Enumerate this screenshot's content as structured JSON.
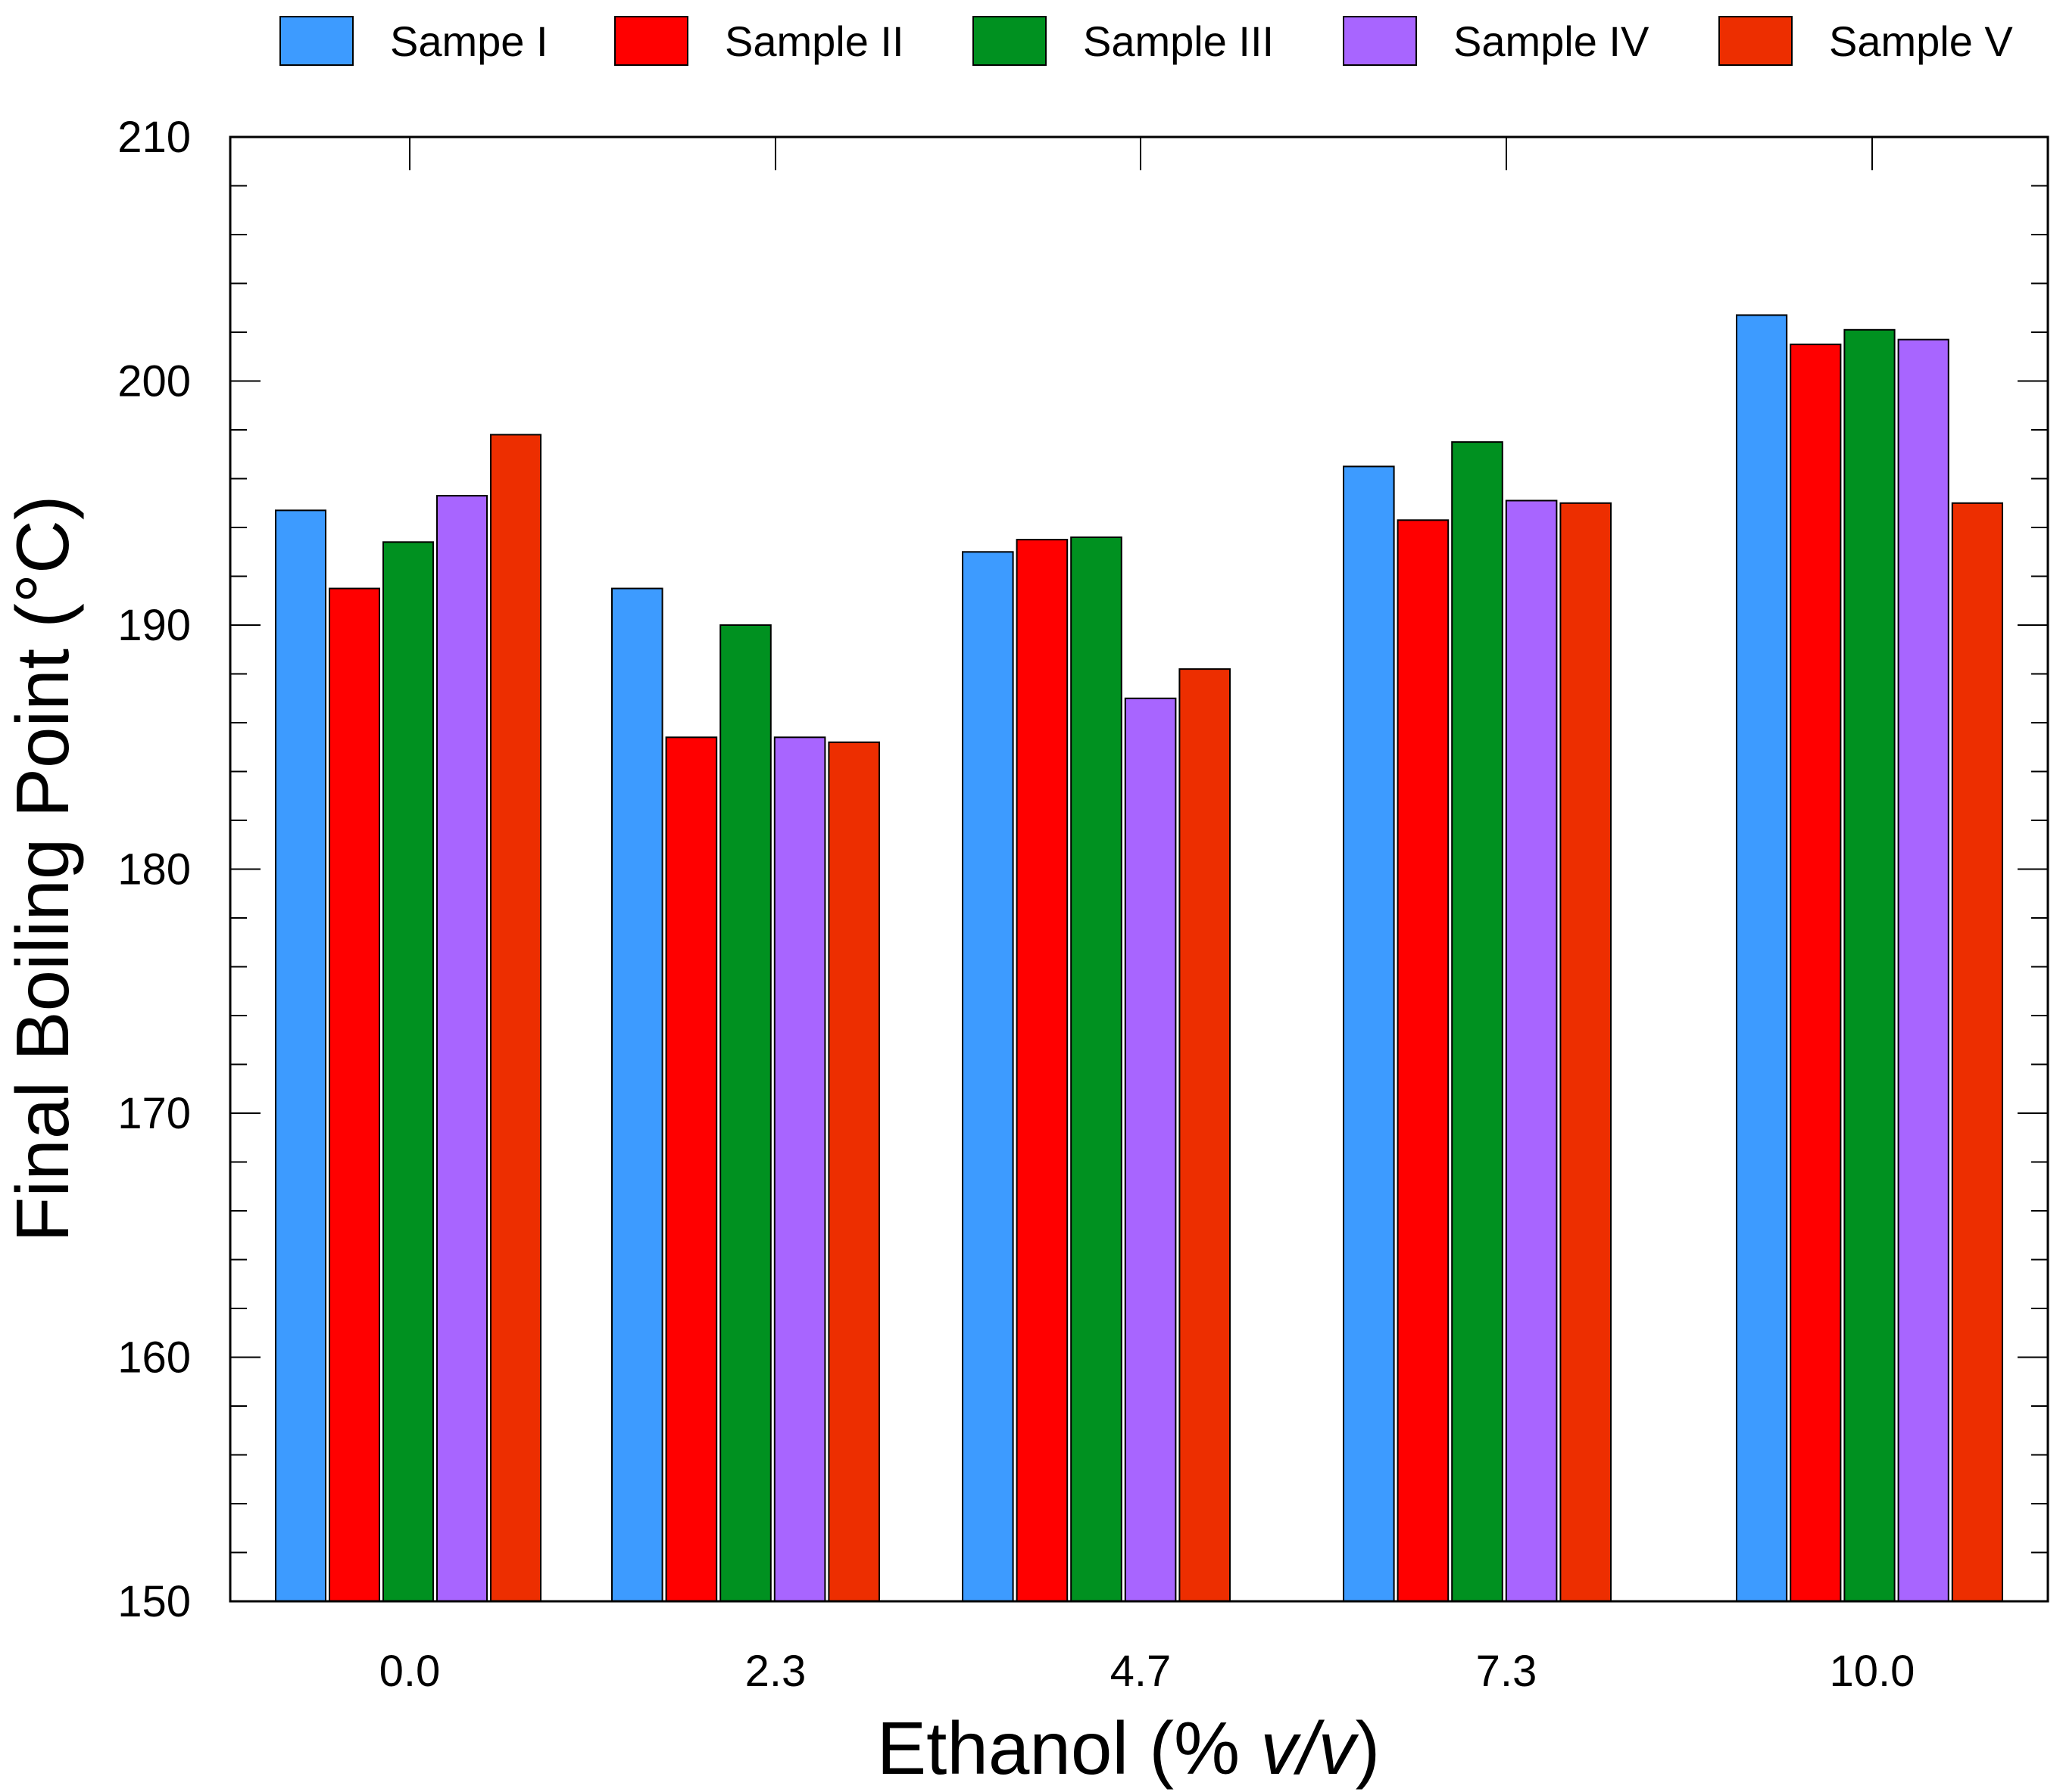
{
  "chart_data": {
    "type": "bar",
    "xlabel": "Ethanol (% v/v)",
    "xlabel_parts": {
      "prefix": "Ethanol (% ",
      "italic": "v/v",
      "suffix": ")"
    },
    "ylabel": "Final Boiling Point (°C)",
    "categories": [
      "0.0",
      "2.3",
      "4.7",
      "7.3",
      "10.0"
    ],
    "ylim": [
      150,
      210
    ],
    "yticks": [
      150,
      160,
      170,
      180,
      190,
      200,
      210
    ],
    "y_minor_step": 2,
    "grid": false,
    "legend_position": "top",
    "series": [
      {
        "name": "Sampe I",
        "color": "#3d9bff",
        "values": [
          194.7,
          191.5,
          193.0,
          196.5,
          202.7
        ]
      },
      {
        "name": "Sample II",
        "color": "#ff0000",
        "values": [
          191.5,
          185.4,
          193.5,
          194.3,
          201.5
        ]
      },
      {
        "name": "Sample III",
        "color": "#009120",
        "values": [
          193.4,
          190.0,
          193.6,
          197.5,
          202.1
        ]
      },
      {
        "name": "Sample IV",
        "color": "#a865ff",
        "values": [
          195.3,
          185.4,
          187.0,
          195.1,
          201.7
        ]
      },
      {
        "name": "Sample V",
        "color": "#ed2e00",
        "values": [
          197.8,
          185.2,
          188.2,
          195.0,
          195.0
        ]
      }
    ]
  }
}
